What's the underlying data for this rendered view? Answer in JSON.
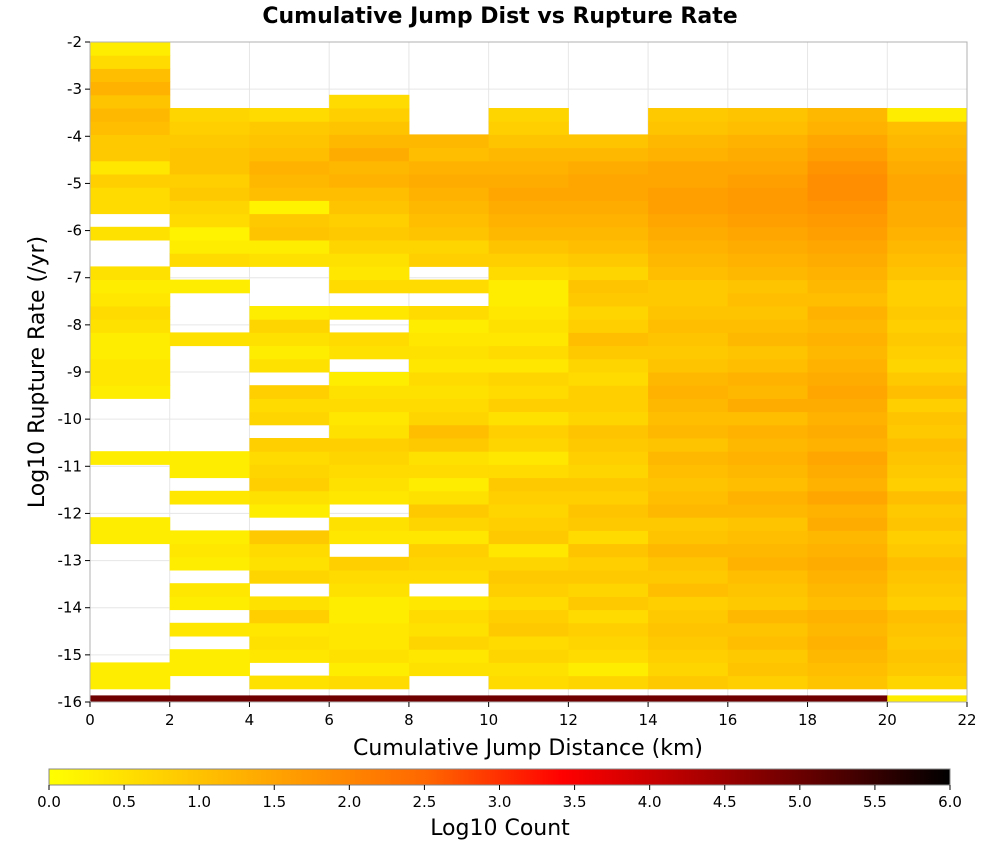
{
  "chart_data": {
    "type": "heatmap",
    "title": "Cumulative Jump Dist vs Rupture Rate",
    "xlabel": "Cumulative Jump Distance (km)",
    "ylabel": "Log10 Rupture Rate (/yr)",
    "xlim": [
      0,
      22
    ],
    "ylim": [
      -16,
      -2
    ],
    "x_ticks": [
      0,
      2,
      4,
      6,
      8,
      10,
      12,
      14,
      16,
      18,
      20,
      22
    ],
    "y_ticks": [
      -2,
      -3,
      -4,
      -5,
      -6,
      -7,
      -8,
      -9,
      -10,
      -11,
      -12,
      -13,
      -14,
      -15,
      -16
    ],
    "x_bin_width": 2,
    "y_bin_width": 0.28,
    "y_bin_start": -16,
    "x_bin_starts": [
      0,
      2,
      4,
      6,
      8,
      10,
      12,
      14,
      16,
      18,
      20
    ],
    "grid": true,
    "colorbar": {
      "label": "Log10 Count",
      "min": 0,
      "max": 6,
      "ticks": [
        "0.0",
        "0.5",
        "1.0",
        "1.5",
        "2.0",
        "2.5",
        "3.0",
        "3.5",
        "4.0",
        "4.5",
        "5.0",
        "5.5",
        "6.0"
      ],
      "colormap": [
        "#ffff00",
        "#ffcc00",
        "#ff9900",
        "#ff6600",
        "#ff0000",
        "#b30000",
        "#600000",
        "#000000"
      ]
    },
    "values_note_rows_from_bottom": "each inner array = one x-bin column, values are Log10 Count from y=-16 upward; null = empty",
    "columns": [
      [
        5.0,
        0.3,
        0.3,
        null,
        null,
        null,
        null,
        null,
        null,
        null,
        null,
        null,
        0.3,
        0.3,
        null,
        null,
        null,
        null,
        0.3,
        null,
        null,
        null,
        null,
        0.3,
        0.4,
        0.4,
        0.3,
        0.3,
        0.5,
        0.6,
        0.4,
        0.3,
        0.5,
        null,
        null,
        0.5,
        null,
        0.6,
        0.6,
        0.8,
        0.4,
        0.9,
        0.9,
        1.1,
        1.2,
        1.0,
        1.3,
        1.1,
        0.6,
        0.3
      ],
      [
        5.0,
        null,
        0.3,
        0.3,
        null,
        0.4,
        null,
        0.3,
        0.4,
        null,
        0.3,
        0.4,
        0.3,
        null,
        null,
        0.4,
        null,
        0.3,
        0.3,
        null,
        null,
        null,
        null,
        null,
        null,
        null,
        null,
        0.5,
        null,
        null,
        null,
        0.3,
        null,
        0.6,
        0.3,
        0.2,
        0.6,
        0.7,
        0.9,
        0.8,
        1.0,
        1.0,
        0.9,
        0.8,
        0.7,
        null,
        null,
        null,
        null,
        null
      ],
      [
        5.0,
        0.5,
        null,
        0.4,
        0.5,
        0.4,
        0.8,
        0.5,
        null,
        0.7,
        0.5,
        0.6,
        0.9,
        null,
        0.3,
        0.5,
        0.8,
        0.7,
        0.6,
        0.8,
        null,
        0.7,
        0.6,
        0.8,
        null,
        0.5,
        0.3,
        0.5,
        0.7,
        0.3,
        null,
        null,
        null,
        0.5,
        0.3,
        1.0,
        0.9,
        0.2,
        1.1,
        1.2,
        1.3,
        1.1,
        1.0,
        0.9,
        0.6,
        null,
        null,
        null,
        null,
        null
      ],
      [
        5.0,
        0.6,
        0.3,
        0.5,
        0.4,
        0.4,
        0.3,
        0.3,
        0.5,
        0.6,
        0.8,
        null,
        0.4,
        0.5,
        null,
        0.4,
        0.5,
        0.6,
        0.7,
        0.8,
        0.5,
        0.4,
        0.6,
        0.5,
        0.3,
        null,
        0.5,
        0.6,
        null,
        0.4,
        null,
        0.6,
        0.4,
        0.5,
        0.7,
        0.9,
        0.8,
        1.0,
        1.1,
        1.3,
        1.2,
        1.4,
        1.2,
        1.0,
        0.8,
        0.6,
        null,
        null,
        null,
        null
      ],
      [
        5.0,
        null,
        0.5,
        0.4,
        0.7,
        0.5,
        0.6,
        0.4,
        null,
        0.6,
        0.7,
        0.8,
        0.4,
        0.7,
        0.9,
        0.5,
        0.3,
        0.6,
        0.5,
        0.9,
        1.1,
        0.7,
        0.6,
        0.5,
        0.6,
        0.4,
        0.5,
        0.4,
        0.3,
        0.6,
        null,
        0.6,
        null,
        0.8,
        0.7,
        1.0,
        1.1,
        1.2,
        1.3,
        1.4,
        1.3,
        1.1,
        1.2,
        null,
        null,
        null,
        null,
        null,
        null,
        null
      ],
      [
        5.0,
        0.6,
        0.5,
        0.7,
        0.6,
        0.9,
        0.8,
        0.6,
        0.8,
        0.9,
        0.7,
        0.4,
        0.9,
        0.8,
        0.7,
        0.8,
        0.9,
        0.6,
        0.4,
        0.7,
        0.8,
        0.5,
        0.8,
        0.6,
        0.7,
        0.4,
        0.6,
        0.4,
        0.5,
        0.4,
        0.3,
        0.3,
        0.6,
        0.8,
        1.0,
        1.2,
        1.3,
        1.4,
        1.5,
        1.4,
        1.3,
        1.2,
        1.0,
        0.8,
        0.7,
        null,
        null,
        null,
        null,
        null
      ],
      [
        5.0,
        0.7,
        0.3,
        0.6,
        0.7,
        0.8,
        0.6,
        0.9,
        0.7,
        0.9,
        0.8,
        1.0,
        0.6,
        0.9,
        1.0,
        0.8,
        0.9,
        0.7,
        0.8,
        0.9,
        1.0,
        0.7,
        0.8,
        0.8,
        0.6,
        0.7,
        0.9,
        1.1,
        0.8,
        0.7,
        0.9,
        1.0,
        0.7,
        0.9,
        1.1,
        1.2,
        1.3,
        1.4,
        1.5,
        1.5,
        1.4,
        1.2,
        1.0,
        null,
        null,
        null,
        null,
        null,
        null,
        null
      ],
      [
        5.0,
        0.9,
        0.7,
        0.8,
        0.9,
        1.0,
        0.9,
        0.8,
        1.1,
        0.9,
        1.0,
        1.2,
        1.0,
        0.9,
        1.2,
        1.1,
        1.0,
        1.1,
        1.2,
        1.0,
        1.2,
        1.1,
        1.2,
        1.3,
        1.2,
        1.0,
        0.9,
        1.0,
        1.1,
        1.0,
        0.9,
        0.9,
        1.1,
        1.2,
        1.3,
        1.4,
        1.5,
        1.6,
        1.6,
        1.5,
        1.5,
        1.3,
        1.2,
        1.0,
        0.9,
        null,
        null,
        null,
        null,
        null
      ],
      [
        5.0,
        0.8,
        1.0,
        0.9,
        1.1,
        1.0,
        1.2,
        0.9,
        1.0,
        1.1,
        1.3,
        1.2,
        1.1,
        1.0,
        1.2,
        1.3,
        1.1,
        1.2,
        1.3,
        1.2,
        1.3,
        1.1,
        1.4,
        1.2,
        1.3,
        1.1,
        1.0,
        1.2,
        1.1,
        1.0,
        1.1,
        1.0,
        1.2,
        1.3,
        1.4,
        1.5,
        1.6,
        1.7,
        1.7,
        1.6,
        1.5,
        1.4,
        1.3,
        1.1,
        1.0,
        null,
        null,
        null,
        null,
        null
      ],
      [
        5.0,
        1.0,
        1.1,
        1.2,
        1.3,
        1.2,
        1.3,
        1.1,
        1.2,
        1.3,
        1.4,
        1.3,
        1.2,
        1.4,
        1.3,
        1.5,
        1.3,
        1.4,
        1.5,
        1.3,
        1.4,
        1.3,
        1.4,
        1.5,
        1.4,
        1.3,
        1.2,
        1.3,
        1.2,
        1.3,
        1.1,
        1.2,
        1.3,
        1.4,
        1.5,
        1.6,
        1.7,
        1.8,
        1.9,
        1.9,
        1.8,
        1.6,
        1.5,
        1.3,
        1.2,
        null,
        null,
        null,
        null,
        null
      ],
      [
        0.3,
        0.7,
        0.9,
        1.0,
        0.9,
        1.0,
        1.1,
        0.8,
        0.9,
        1.0,
        1.1,
        0.9,
        0.8,
        1.0,
        0.9,
        1.1,
        0.8,
        0.9,
        1.0,
        1.1,
        0.9,
        1.0,
        0.8,
        1.1,
        0.9,
        0.7,
        0.8,
        0.9,
        0.8,
        0.9,
        0.8,
        0.8,
        1.0,
        1.1,
        1.2,
        1.3,
        1.4,
        1.4,
        1.5,
        1.5,
        1.4,
        1.3,
        1.2,
        1.1,
        0.3,
        null,
        null,
        null,
        null,
        null
      ]
    ]
  }
}
